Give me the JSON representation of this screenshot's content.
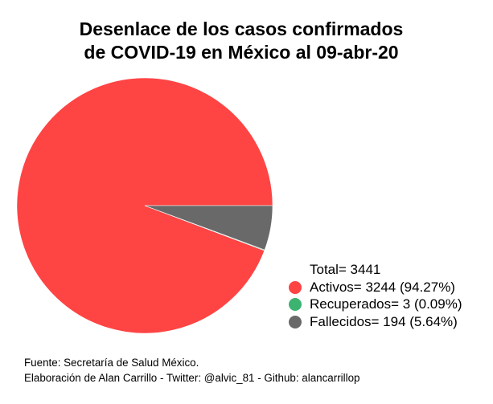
{
  "chart_data": {
    "type": "pie",
    "title": [
      "Desenlace de los casos confirmados",
      "de COVID-19 en México al 09-abr-20"
    ],
    "total_label": "Total= 3441",
    "slices": [
      {
        "name": "Activos",
        "value": 3244,
        "percent": 94.27,
        "color": "#ff4444",
        "legend": "Activos= 3244 (94.27%)"
      },
      {
        "name": "Recuperados",
        "value": 3,
        "percent": 0.09,
        "color": "#3cb371",
        "legend": "Recuperados= 3 (0.09%)"
      },
      {
        "name": "Fallecidos",
        "value": 194,
        "percent": 5.64,
        "color": "#696969",
        "legend": "Fallecidos= 194 (5.64%)"
      }
    ],
    "legend_placement": "bottom-right"
  },
  "footer": {
    "source": "Fuente: Secretaría de Salud México.",
    "credit": "Elaboración de Alan Carrillo - Twitter: @alvic_81 - Github: alancarrillop"
  }
}
